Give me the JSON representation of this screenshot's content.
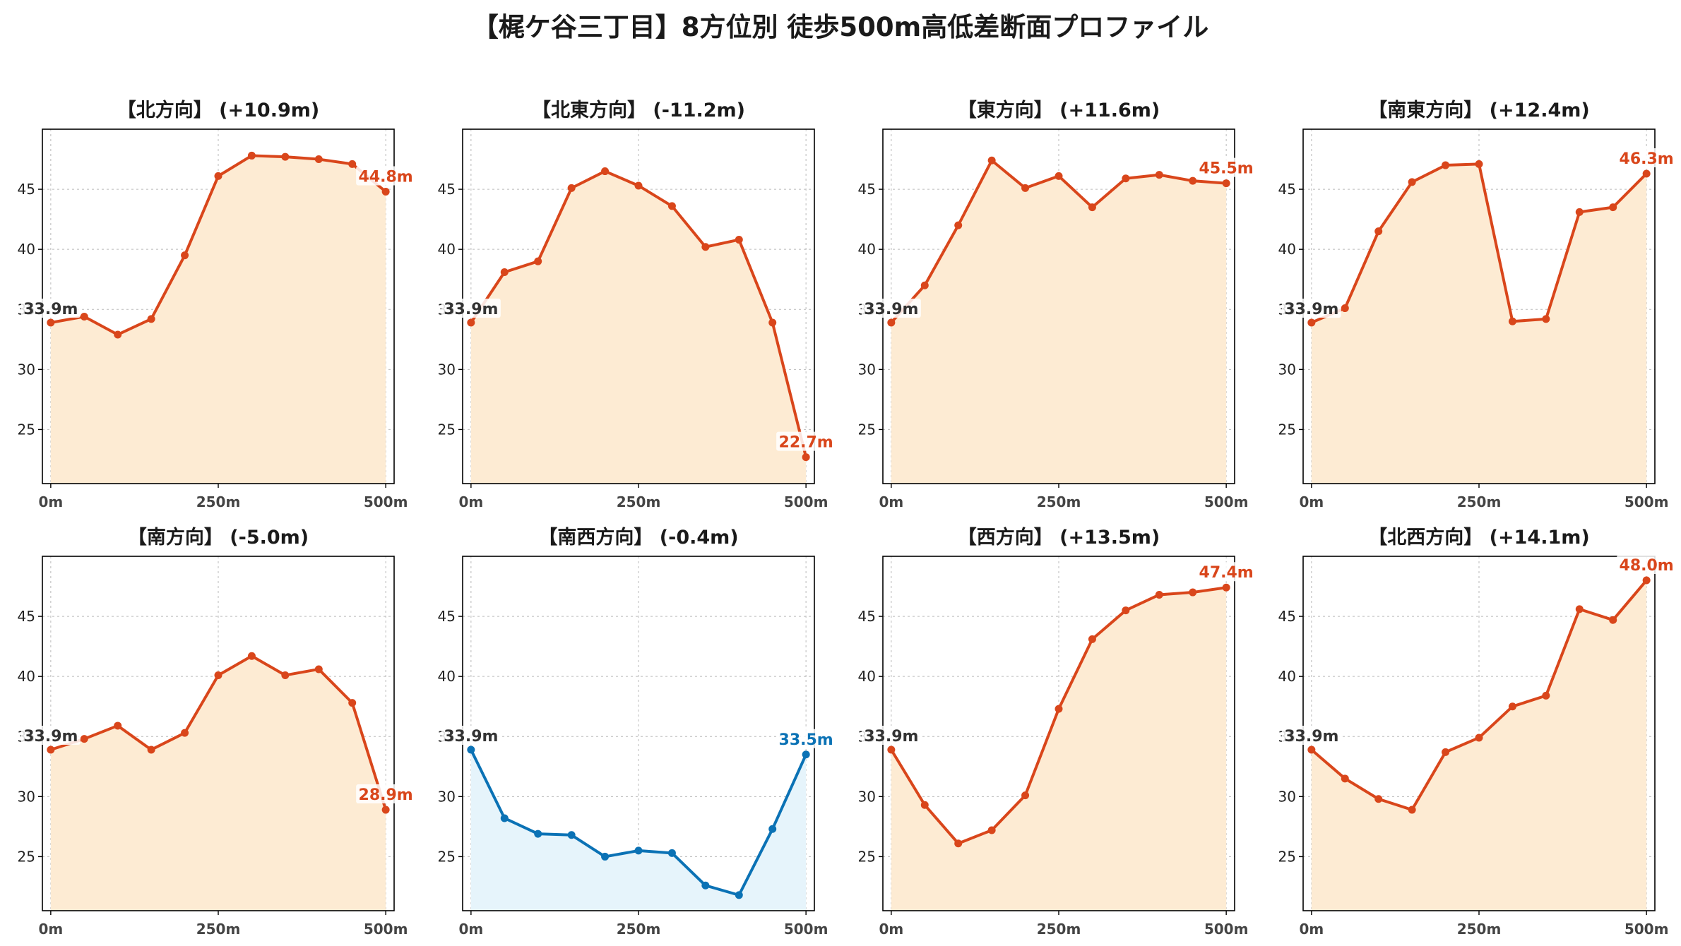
{
  "title": "【梶ケ谷三丁目】8方位別 徒歩500m高低差断面プロファイル",
  "colors": {
    "up": "#d9461b",
    "up_fill": "#fdebd3",
    "down": "#0b72b5",
    "down_fill": "#e6f4fb",
    "start_label": "#333333",
    "grid": "#bbbbbb"
  },
  "chart_data": [
    {
      "type": "area",
      "title": "【北方向】 (+10.9m)",
      "x": [
        0,
        50,
        100,
        150,
        200,
        250,
        300,
        350,
        400,
        450,
        500
      ],
      "values": [
        33.9,
        34.4,
        32.9,
        34.2,
        39.5,
        46.1,
        47.8,
        47.7,
        47.5,
        47.1,
        44.8
      ],
      "start_label": "33.9m",
      "end_label": "44.8m",
      "trend": "up",
      "xticks": [
        "0m",
        "250m",
        "500m"
      ],
      "yticks": [
        25,
        30,
        35,
        40,
        45
      ],
      "ylim": [
        20.5,
        50.0
      ],
      "grid": true
    },
    {
      "type": "area",
      "title": "【北東方向】 (-11.2m)",
      "x": [
        0,
        50,
        100,
        150,
        200,
        250,
        300,
        350,
        400,
        450,
        500
      ],
      "values": [
        33.9,
        38.1,
        39.0,
        45.1,
        46.5,
        45.3,
        43.6,
        40.2,
        40.8,
        33.9,
        22.7
      ],
      "start_label": "33.9m",
      "end_label": "22.7m",
      "trend": "up",
      "xticks": [
        "0m",
        "250m",
        "500m"
      ],
      "yticks": [
        25,
        30,
        35,
        40,
        45
      ],
      "ylim": [
        20.5,
        50.0
      ],
      "grid": true
    },
    {
      "type": "area",
      "title": "【東方向】 (+11.6m)",
      "x": [
        0,
        50,
        100,
        150,
        200,
        250,
        300,
        350,
        400,
        450,
        500
      ],
      "values": [
        33.9,
        37.0,
        42.0,
        47.4,
        45.1,
        46.1,
        43.5,
        45.9,
        46.2,
        45.7,
        45.5
      ],
      "start_label": "33.9m",
      "end_label": "45.5m",
      "trend": "up",
      "xticks": [
        "0m",
        "250m",
        "500m"
      ],
      "yticks": [
        25,
        30,
        35,
        40,
        45
      ],
      "ylim": [
        20.5,
        50.0
      ],
      "grid": true
    },
    {
      "type": "area",
      "title": "【南東方向】 (+12.4m)",
      "x": [
        0,
        50,
        100,
        150,
        200,
        250,
        300,
        350,
        400,
        450,
        500
      ],
      "values": [
        33.9,
        35.1,
        41.5,
        45.6,
        47.0,
        47.1,
        34.0,
        34.2,
        43.1,
        43.5,
        46.3
      ],
      "start_label": "33.9m",
      "end_label": "46.3m",
      "trend": "up",
      "xticks": [
        "0m",
        "250m",
        "500m"
      ],
      "yticks": [
        25,
        30,
        35,
        40,
        45
      ],
      "ylim": [
        20.5,
        50.0
      ],
      "grid": true
    },
    {
      "type": "area",
      "title": "【南方向】 (-5.0m)",
      "x": [
        0,
        50,
        100,
        150,
        200,
        250,
        300,
        350,
        400,
        450,
        500
      ],
      "values": [
        33.9,
        34.8,
        35.9,
        33.9,
        35.3,
        40.1,
        41.7,
        40.1,
        40.6,
        37.8,
        28.9
      ],
      "start_label": "33.9m",
      "end_label": "28.9m",
      "trend": "up",
      "xticks": [
        "0m",
        "250m",
        "500m"
      ],
      "yticks": [
        25,
        30,
        35,
        40,
        45
      ],
      "ylim": [
        20.5,
        50.0
      ],
      "grid": true
    },
    {
      "type": "area",
      "title": "【南西方向】 (-0.4m)",
      "x": [
        0,
        50,
        100,
        150,
        200,
        250,
        300,
        350,
        400,
        450,
        500
      ],
      "values": [
        33.9,
        28.2,
        26.9,
        26.8,
        25.0,
        25.5,
        25.3,
        22.6,
        21.8,
        27.3,
        33.5
      ],
      "start_label": "33.9m",
      "end_label": "33.5m",
      "trend": "down",
      "xticks": [
        "0m",
        "250m",
        "500m"
      ],
      "yticks": [
        25,
        30,
        35,
        40,
        45
      ],
      "ylim": [
        20.5,
        50.0
      ],
      "grid": true
    },
    {
      "type": "area",
      "title": "【西方向】 (+13.5m)",
      "x": [
        0,
        50,
        100,
        150,
        200,
        250,
        300,
        350,
        400,
        450,
        500
      ],
      "values": [
        33.9,
        29.3,
        26.1,
        27.2,
        30.1,
        37.3,
        43.1,
        45.5,
        46.8,
        47.0,
        47.4
      ],
      "start_label": "33.9m",
      "end_label": "47.4m",
      "trend": "up",
      "xticks": [
        "0m",
        "250m",
        "500m"
      ],
      "yticks": [
        25,
        30,
        35,
        40,
        45
      ],
      "ylim": [
        20.5,
        50.0
      ],
      "grid": true
    },
    {
      "type": "area",
      "title": "【北西方向】 (+14.1m)",
      "x": [
        0,
        50,
        100,
        150,
        200,
        250,
        300,
        350,
        400,
        450,
        500
      ],
      "values": [
        33.9,
        31.5,
        29.8,
        28.9,
        33.7,
        34.9,
        37.5,
        38.4,
        45.6,
        44.7,
        48.0
      ],
      "start_label": "33.9m",
      "end_label": "48.0m",
      "trend": "up",
      "xticks": [
        "0m",
        "250m",
        "500m"
      ],
      "yticks": [
        25,
        30,
        35,
        40,
        45
      ],
      "ylim": [
        20.5,
        50.0
      ],
      "grid": true
    }
  ]
}
